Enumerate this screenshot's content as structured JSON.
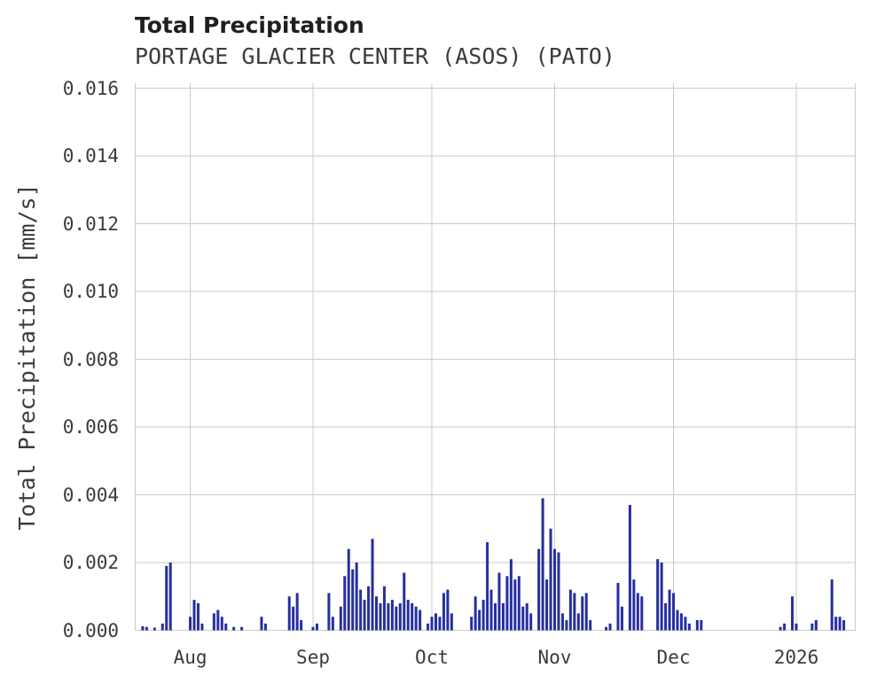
{
  "chart_data": {
    "type": "bar",
    "title": "Total Precipitation",
    "subtitle": "PORTAGE GLACIER CENTER (ASOS) (PATO)",
    "xlabel": "",
    "ylabel": "Total Precipitation [mm/s]",
    "ylim": [
      0,
      0.016
    ],
    "x_range": [
      "2025-07-18",
      "2026-01-16"
    ],
    "grid": true,
    "legend": "none",
    "bar_color": "#252f9e",
    "grid_color": "#cacaca",
    "text_color": "#3b3b3b",
    "title_color": "#1f1f1f",
    "background_color": "#ffffff",
    "yticks": [
      {
        "value": 0.0,
        "label": "0.000"
      },
      {
        "value": 0.002,
        "label": "0.002"
      },
      {
        "value": 0.004,
        "label": "0.004"
      },
      {
        "value": 0.006,
        "label": "0.006"
      },
      {
        "value": 0.008,
        "label": "0.008"
      },
      {
        "value": 0.01,
        "label": "0.010"
      },
      {
        "value": 0.012,
        "label": "0.012"
      },
      {
        "value": 0.014,
        "label": "0.014"
      },
      {
        "value": 0.016,
        "label": "0.016"
      }
    ],
    "xticks": [
      {
        "date": "2025-08-01",
        "label": "Aug"
      },
      {
        "date": "2025-09-01",
        "label": "Sep"
      },
      {
        "date": "2025-10-01",
        "label": "Oct"
      },
      {
        "date": "2025-11-01",
        "label": "Nov"
      },
      {
        "date": "2025-12-01",
        "label": "Dec"
      },
      {
        "date": "2026-01-01",
        "label": "2026"
      }
    ],
    "points": [
      [
        "2025-07-20",
        0.00012
      ],
      [
        "2025-07-21",
        0.0001
      ],
      [
        "2025-07-23",
        8e-05
      ],
      [
        "2025-07-25",
        0.0002
      ],
      [
        "2025-07-26",
        0.0019
      ],
      [
        "2025-07-27",
        0.002
      ],
      [
        "2025-08-01",
        0.0004
      ],
      [
        "2025-08-02",
        0.0009
      ],
      [
        "2025-08-03",
        0.0008
      ],
      [
        "2025-08-04",
        0.0002
      ],
      [
        "2025-08-07",
        0.0005
      ],
      [
        "2025-08-08",
        0.0006
      ],
      [
        "2025-08-09",
        0.0004
      ],
      [
        "2025-08-10",
        0.0002
      ],
      [
        "2025-08-12",
        0.0001
      ],
      [
        "2025-08-14",
        0.0001
      ],
      [
        "2025-08-19",
        0.0004
      ],
      [
        "2025-08-20",
        0.0002
      ],
      [
        "2025-08-26",
        0.001
      ],
      [
        "2025-08-27",
        0.0007
      ],
      [
        "2025-08-28",
        0.0011
      ],
      [
        "2025-08-29",
        0.0003
      ],
      [
        "2025-09-01",
        0.0001
      ],
      [
        "2025-09-02",
        0.0002
      ],
      [
        "2025-09-05",
        0.0011
      ],
      [
        "2025-09-06",
        0.0004
      ],
      [
        "2025-09-08",
        0.0007
      ],
      [
        "2025-09-09",
        0.0016
      ],
      [
        "2025-09-10",
        0.0024
      ],
      [
        "2025-09-11",
        0.0018
      ],
      [
        "2025-09-12",
        0.002
      ],
      [
        "2025-09-13",
        0.0012
      ],
      [
        "2025-09-14",
        0.0009
      ],
      [
        "2025-09-15",
        0.0013
      ],
      [
        "2025-09-16",
        0.0027
      ],
      [
        "2025-09-17",
        0.001
      ],
      [
        "2025-09-18",
        0.0008
      ],
      [
        "2025-09-19",
        0.0013
      ],
      [
        "2025-09-20",
        0.0008
      ],
      [
        "2025-09-21",
        0.0009
      ],
      [
        "2025-09-22",
        0.0007
      ],
      [
        "2025-09-23",
        0.0008
      ],
      [
        "2025-09-24",
        0.0017
      ],
      [
        "2025-09-25",
        0.0009
      ],
      [
        "2025-09-26",
        0.0008
      ],
      [
        "2025-09-27",
        0.0007
      ],
      [
        "2025-09-28",
        0.0006
      ],
      [
        "2025-09-30",
        0.0002
      ],
      [
        "2025-10-01",
        0.0004
      ],
      [
        "2025-10-02",
        0.0005
      ],
      [
        "2025-10-03",
        0.0004
      ],
      [
        "2025-10-04",
        0.0011
      ],
      [
        "2025-10-05",
        0.0012
      ],
      [
        "2025-10-06",
        0.0005
      ],
      [
        "2025-10-11",
        0.0004
      ],
      [
        "2025-10-12",
        0.001
      ],
      [
        "2025-10-13",
        0.0006
      ],
      [
        "2025-10-14",
        0.0009
      ],
      [
        "2025-10-15",
        0.0026
      ],
      [
        "2025-10-16",
        0.0012
      ],
      [
        "2025-10-17",
        0.0008
      ],
      [
        "2025-10-18",
        0.0017
      ],
      [
        "2025-10-19",
        0.0008
      ],
      [
        "2025-10-20",
        0.0016
      ],
      [
        "2025-10-21",
        0.0021
      ],
      [
        "2025-10-22",
        0.0015
      ],
      [
        "2025-10-23",
        0.0016
      ],
      [
        "2025-10-24",
        0.0007
      ],
      [
        "2025-10-25",
        0.0008
      ],
      [
        "2025-10-26",
        0.0005
      ],
      [
        "2025-10-28",
        0.0024
      ],
      [
        "2025-10-29",
        0.0039
      ],
      [
        "2025-10-30",
        0.0015
      ],
      [
        "2025-10-31",
        0.003
      ],
      [
        "2025-11-01",
        0.0024
      ],
      [
        "2025-11-02",
        0.0023
      ],
      [
        "2025-11-03",
        0.0005
      ],
      [
        "2025-11-04",
        0.0003
      ],
      [
        "2025-11-05",
        0.0012
      ],
      [
        "2025-11-06",
        0.0011
      ],
      [
        "2025-11-07",
        0.0005
      ],
      [
        "2025-11-08",
        0.001
      ],
      [
        "2025-11-09",
        0.0011
      ],
      [
        "2025-11-10",
        0.0003
      ],
      [
        "2025-11-14",
        0.0001
      ],
      [
        "2025-11-15",
        0.0002
      ],
      [
        "2025-11-17",
        0.0014
      ],
      [
        "2025-11-18",
        0.0007
      ],
      [
        "2025-11-20",
        0.0037
      ],
      [
        "2025-11-21",
        0.0015
      ],
      [
        "2025-11-22",
        0.0011
      ],
      [
        "2025-11-23",
        0.001
      ],
      [
        "2025-11-27",
        0.0021
      ],
      [
        "2025-11-28",
        0.002
      ],
      [
        "2025-11-29",
        0.0008
      ],
      [
        "2025-11-30",
        0.0012
      ],
      [
        "2025-12-01",
        0.0011
      ],
      [
        "2025-12-02",
        0.0006
      ],
      [
        "2025-12-03",
        0.0005
      ],
      [
        "2025-12-04",
        0.0004
      ],
      [
        "2025-12-05",
        0.0002
      ],
      [
        "2025-12-07",
        0.0003
      ],
      [
        "2025-12-08",
        0.0003
      ],
      [
        "2025-12-28",
        0.0001
      ],
      [
        "2025-12-29",
        0.0002
      ],
      [
        "2025-12-31",
        0.001
      ],
      [
        "2026-01-01",
        0.0002
      ],
      [
        "2026-01-05",
        0.0002
      ],
      [
        "2026-01-06",
        0.0003
      ],
      [
        "2026-01-10",
        0.0015
      ],
      [
        "2026-01-11",
        0.0004
      ],
      [
        "2026-01-12",
        0.0004
      ],
      [
        "2026-01-13",
        0.0003
      ]
    ]
  }
}
